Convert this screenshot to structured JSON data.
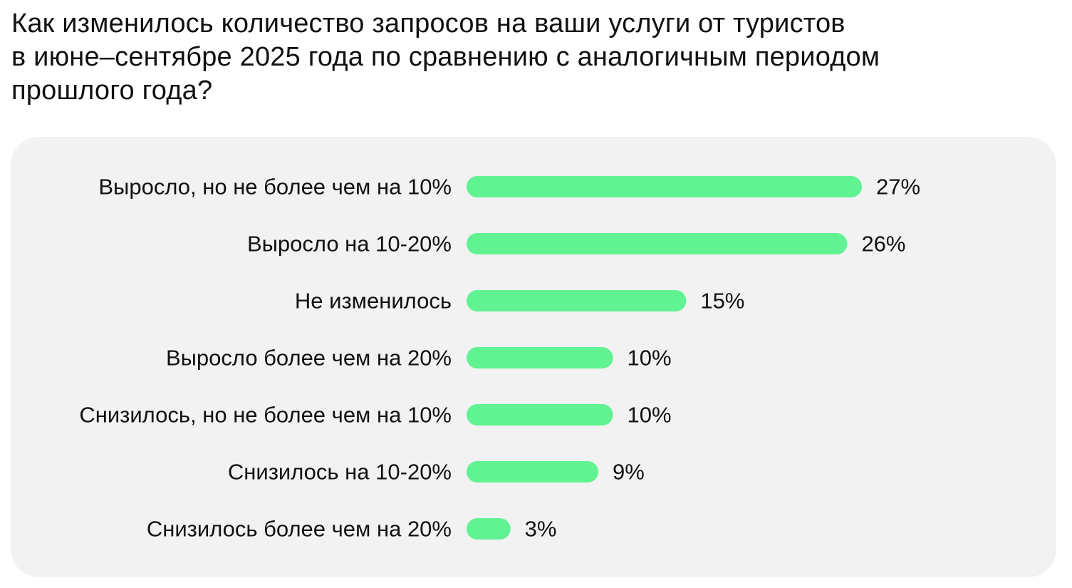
{
  "title_lines": [
    "Как изменилось количество запросов на ваши услуги от туристов",
    "в июне–сентябре 2025 года по сравнению с аналогичным периодом",
    "прошлого года?"
  ],
  "colors": {
    "bar": "#61f292",
    "panel": "#f2f2f2",
    "text": "#111111"
  },
  "chart_data": {
    "type": "bar",
    "orientation": "horizontal",
    "title": "Как изменилось количество запросов на ваши услуги от туристов в июне–сентябре 2025 года по сравнению с аналогичным периодом прошлого года?",
    "categories": [
      "Выросло, но не более чем на 10%",
      "Выросло на 10-20%",
      "Не изменилось",
      "Выросло более чем на 20%",
      "Снизилось, но не более чем на 10%",
      "Снизилось на 10-20%",
      "Снизилось более чем на 20%"
    ],
    "values": [
      27,
      26,
      15,
      10,
      10,
      9,
      3
    ],
    "value_labels": [
      "27%",
      "26%",
      "15%",
      "10%",
      "10%",
      "9%",
      "3%"
    ],
    "unit": "%",
    "xlim": [
      0,
      27
    ],
    "grid": false,
    "legend": "none"
  }
}
